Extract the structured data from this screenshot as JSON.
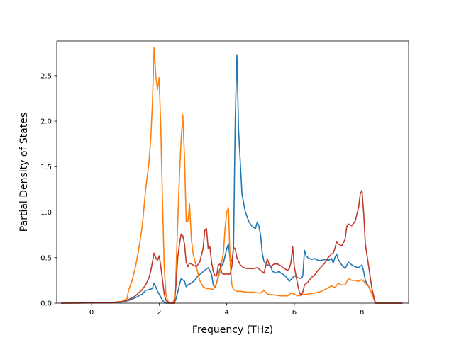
{
  "chart_data": {
    "type": "line",
    "xlabel": "Frequency (THz)",
    "ylabel": "Partial Density of States",
    "xlim": [
      -1.03,
      9.38
    ],
    "ylim": [
      0,
      2.88
    ],
    "x_ticks": [
      0,
      2,
      4,
      6,
      8
    ],
    "y_ticks": [
      0.0,
      0.5,
      1.0,
      1.5,
      2.0,
      2.5
    ],
    "x_tick_labels": [
      "0",
      "2",
      "4",
      "6",
      "8"
    ],
    "y_tick_labels": [
      "0.0",
      "0.5",
      "1.0",
      "1.5",
      "2.0",
      "2.5"
    ],
    "grid": false,
    "legend": "none",
    "series": [
      {
        "color": "#1f77b4",
        "points": [
          [
            -0.9,
            0
          ],
          [
            0.5,
            0.003
          ],
          [
            0.9,
            0.012
          ],
          [
            1.1,
            0.03
          ],
          [
            1.3,
            0.06
          ],
          [
            1.5,
            0.1
          ],
          [
            1.6,
            0.14
          ],
          [
            1.7,
            0.15
          ],
          [
            1.8,
            0.16
          ],
          [
            1.85,
            0.22
          ],
          [
            1.9,
            0.18
          ],
          [
            1.95,
            0.13
          ],
          [
            2.0,
            0.1
          ],
          [
            2.1,
            0.03
          ],
          [
            2.15,
            0.01
          ],
          [
            2.2,
            0.0
          ],
          [
            2.45,
            0.0
          ],
          [
            2.5,
            0.05
          ],
          [
            2.55,
            0.12
          ],
          [
            2.6,
            0.2
          ],
          [
            2.65,
            0.27
          ],
          [
            2.75,
            0.24
          ],
          [
            2.8,
            0.18
          ],
          [
            2.85,
            0.2
          ],
          [
            2.95,
            0.22
          ],
          [
            3.05,
            0.25
          ],
          [
            3.15,
            0.3
          ],
          [
            3.25,
            0.33
          ],
          [
            3.35,
            0.36
          ],
          [
            3.45,
            0.39
          ],
          [
            3.55,
            0.32
          ],
          [
            3.6,
            0.2
          ],
          [
            3.65,
            0.17
          ],
          [
            3.7,
            0.22
          ],
          [
            3.75,
            0.3
          ],
          [
            3.8,
            0.38
          ],
          [
            3.9,
            0.44
          ],
          [
            4.0,
            0.6
          ],
          [
            4.05,
            0.65
          ],
          [
            4.1,
            0.48
          ],
          [
            4.15,
            0.46
          ],
          [
            4.2,
            0.6
          ],
          [
            4.25,
            2.0
          ],
          [
            4.3,
            2.73
          ],
          [
            4.35,
            1.9
          ],
          [
            4.45,
            1.2
          ],
          [
            4.55,
            1.0
          ],
          [
            4.65,
            0.9
          ],
          [
            4.75,
            0.84
          ],
          [
            4.85,
            0.82
          ],
          [
            4.9,
            0.89
          ],
          [
            4.95,
            0.85
          ],
          [
            5.0,
            0.75
          ],
          [
            5.05,
            0.55
          ],
          [
            5.1,
            0.46
          ],
          [
            5.2,
            0.42
          ],
          [
            5.3,
            0.41
          ],
          [
            5.35,
            0.35
          ],
          [
            5.45,
            0.33
          ],
          [
            5.55,
            0.35
          ],
          [
            5.6,
            0.33
          ],
          [
            5.7,
            0.31
          ],
          [
            5.8,
            0.27
          ],
          [
            5.85,
            0.24
          ],
          [
            5.9,
            0.26
          ],
          [
            6.0,
            0.3
          ],
          [
            6.1,
            0.28
          ],
          [
            6.2,
            0.27
          ],
          [
            6.25,
            0.3
          ],
          [
            6.3,
            0.58
          ],
          [
            6.35,
            0.52
          ],
          [
            6.4,
            0.5
          ],
          [
            6.5,
            0.48
          ],
          [
            6.6,
            0.49
          ],
          [
            6.7,
            0.47
          ],
          [
            6.8,
            0.47
          ],
          [
            6.9,
            0.48
          ],
          [
            7.0,
            0.47
          ],
          [
            7.1,
            0.49
          ],
          [
            7.15,
            0.44
          ],
          [
            7.2,
            0.5
          ],
          [
            7.25,
            0.54
          ],
          [
            7.3,
            0.48
          ],
          [
            7.4,
            0.42
          ],
          [
            7.5,
            0.38
          ],
          [
            7.6,
            0.45
          ],
          [
            7.7,
            0.42
          ],
          [
            7.8,
            0.4
          ],
          [
            7.9,
            0.39
          ],
          [
            8.0,
            0.42
          ],
          [
            8.05,
            0.35
          ],
          [
            8.1,
            0.25
          ],
          [
            8.2,
            0.18
          ],
          [
            8.3,
            0.1
          ],
          [
            8.4,
            0.0
          ],
          [
            9.2,
            0.0
          ]
        ]
      },
      {
        "color": "#ff7f0e",
        "points": [
          [
            -0.9,
            0
          ],
          [
            0.5,
            0.005
          ],
          [
            0.9,
            0.02
          ],
          [
            1.05,
            0.05
          ],
          [
            1.1,
            0.15
          ],
          [
            1.2,
            0.25
          ],
          [
            1.3,
            0.4
          ],
          [
            1.4,
            0.6
          ],
          [
            1.5,
            0.85
          ],
          [
            1.6,
            1.25
          ],
          [
            1.7,
            1.55
          ],
          [
            1.75,
            1.8
          ],
          [
            1.8,
            2.2
          ],
          [
            1.85,
            2.81
          ],
          [
            1.9,
            2.5
          ],
          [
            1.95,
            2.35
          ],
          [
            2.0,
            2.48
          ],
          [
            2.05,
            1.9
          ],
          [
            2.1,
            1.1
          ],
          [
            2.15,
            0.4
          ],
          [
            2.2,
            0.1
          ],
          [
            2.25,
            0.03
          ],
          [
            2.3,
            0.0
          ],
          [
            2.4,
            0.0
          ],
          [
            2.45,
            0.05
          ],
          [
            2.5,
            0.35
          ],
          [
            2.55,
            0.9
          ],
          [
            2.6,
            1.4
          ],
          [
            2.65,
            1.8
          ],
          [
            2.7,
            2.07
          ],
          [
            2.75,
            1.6
          ],
          [
            2.8,
            0.9
          ],
          [
            2.85,
            0.9
          ],
          [
            2.9,
            1.09
          ],
          [
            2.95,
            0.72
          ],
          [
            3.0,
            0.55
          ],
          [
            3.1,
            0.4
          ],
          [
            3.2,
            0.25
          ],
          [
            3.3,
            0.18
          ],
          [
            3.4,
            0.16
          ],
          [
            3.5,
            0.16
          ],
          [
            3.6,
            0.15
          ],
          [
            3.7,
            0.22
          ],
          [
            3.8,
            0.35
          ],
          [
            3.9,
            0.55
          ],
          [
            3.95,
            0.82
          ],
          [
            4.0,
            1.0
          ],
          [
            4.05,
            1.05
          ],
          [
            4.1,
            0.45
          ],
          [
            4.15,
            0.2
          ],
          [
            4.2,
            0.15
          ],
          [
            4.3,
            0.13
          ],
          [
            4.4,
            0.13
          ],
          [
            4.6,
            0.12
          ],
          [
            4.8,
            0.12
          ],
          [
            5.0,
            0.11
          ],
          [
            5.1,
            0.14
          ],
          [
            5.2,
            0.1
          ],
          [
            5.4,
            0.09
          ],
          [
            5.6,
            0.08
          ],
          [
            5.8,
            0.08
          ],
          [
            5.9,
            0.11
          ],
          [
            6.0,
            0.1
          ],
          [
            6.1,
            0.08
          ],
          [
            6.2,
            0.09
          ],
          [
            6.4,
            0.1
          ],
          [
            6.6,
            0.11
          ],
          [
            6.8,
            0.13
          ],
          [
            7.0,
            0.17
          ],
          [
            7.1,
            0.19
          ],
          [
            7.2,
            0.17
          ],
          [
            7.3,
            0.22
          ],
          [
            7.4,
            0.2
          ],
          [
            7.5,
            0.2
          ],
          [
            7.6,
            0.27
          ],
          [
            7.7,
            0.25
          ],
          [
            7.8,
            0.25
          ],
          [
            7.9,
            0.24
          ],
          [
            8.0,
            0.26
          ],
          [
            8.1,
            0.22
          ],
          [
            8.2,
            0.18
          ],
          [
            8.3,
            0.1
          ],
          [
            8.4,
            0.0
          ],
          [
            9.2,
            0.0
          ]
        ]
      },
      {
        "color": "#c0392b",
        "points": [
          [
            -0.9,
            0
          ],
          [
            0.5,
            0.004
          ],
          [
            0.9,
            0.015
          ],
          [
            1.1,
            0.04
          ],
          [
            1.3,
            0.08
          ],
          [
            1.5,
            0.15
          ],
          [
            1.6,
            0.2
          ],
          [
            1.7,
            0.28
          ],
          [
            1.75,
            0.35
          ],
          [
            1.8,
            0.45
          ],
          [
            1.85,
            0.55
          ],
          [
            1.9,
            0.5
          ],
          [
            1.95,
            0.47
          ],
          [
            2.0,
            0.52
          ],
          [
            2.05,
            0.4
          ],
          [
            2.1,
            0.25
          ],
          [
            2.15,
            0.1
          ],
          [
            2.2,
            0.03
          ],
          [
            2.3,
            0.0
          ],
          [
            2.45,
            0.0
          ],
          [
            2.5,
            0.2
          ],
          [
            2.55,
            0.5
          ],
          [
            2.6,
            0.65
          ],
          [
            2.65,
            0.76
          ],
          [
            2.7,
            0.74
          ],
          [
            2.75,
            0.65
          ],
          [
            2.8,
            0.45
          ],
          [
            2.85,
            0.4
          ],
          [
            2.9,
            0.44
          ],
          [
            3.0,
            0.42
          ],
          [
            3.1,
            0.4
          ],
          [
            3.2,
            0.45
          ],
          [
            3.3,
            0.6
          ],
          [
            3.35,
            0.8
          ],
          [
            3.4,
            0.82
          ],
          [
            3.45,
            0.6
          ],
          [
            3.5,
            0.62
          ],
          [
            3.55,
            0.45
          ],
          [
            3.6,
            0.35
          ],
          [
            3.65,
            0.3
          ],
          [
            3.7,
            0.3
          ],
          [
            3.75,
            0.42
          ],
          [
            3.8,
            0.43
          ],
          [
            3.85,
            0.33
          ],
          [
            3.9,
            0.32
          ],
          [
            4.0,
            0.32
          ],
          [
            4.1,
            0.32
          ],
          [
            4.15,
            0.4
          ],
          [
            4.2,
            0.61
          ],
          [
            4.25,
            0.6
          ],
          [
            4.3,
            0.5
          ],
          [
            4.4,
            0.42
          ],
          [
            4.5,
            0.39
          ],
          [
            4.6,
            0.38
          ],
          [
            4.8,
            0.38
          ],
          [
            4.9,
            0.39
          ],
          [
            5.0,
            0.36
          ],
          [
            5.1,
            0.33
          ],
          [
            5.15,
            0.4
          ],
          [
            5.2,
            0.49
          ],
          [
            5.25,
            0.43
          ],
          [
            5.3,
            0.4
          ],
          [
            5.4,
            0.43
          ],
          [
            5.5,
            0.43
          ],
          [
            5.6,
            0.41
          ],
          [
            5.7,
            0.38
          ],
          [
            5.8,
            0.36
          ],
          [
            5.85,
            0.38
          ],
          [
            5.9,
            0.45
          ],
          [
            5.95,
            0.62
          ],
          [
            6.0,
            0.4
          ],
          [
            6.05,
            0.3
          ],
          [
            6.1,
            0.2
          ],
          [
            6.15,
            0.12
          ],
          [
            6.2,
            0.08
          ],
          [
            6.25,
            0.12
          ],
          [
            6.3,
            0.2
          ],
          [
            6.4,
            0.23
          ],
          [
            6.5,
            0.28
          ],
          [
            6.6,
            0.31
          ],
          [
            6.7,
            0.36
          ],
          [
            6.8,
            0.4
          ],
          [
            6.9,
            0.44
          ],
          [
            7.0,
            0.5
          ],
          [
            7.1,
            0.54
          ],
          [
            7.15,
            0.55
          ],
          [
            7.2,
            0.6
          ],
          [
            7.25,
            0.68
          ],
          [
            7.3,
            0.65
          ],
          [
            7.4,
            0.63
          ],
          [
            7.5,
            0.7
          ],
          [
            7.55,
            0.84
          ],
          [
            7.6,
            0.87
          ],
          [
            7.7,
            0.85
          ],
          [
            7.8,
            0.9
          ],
          [
            7.9,
            1.05
          ],
          [
            7.95,
            1.2
          ],
          [
            8.0,
            1.24
          ],
          [
            8.05,
            1.0
          ],
          [
            8.1,
            0.65
          ],
          [
            8.2,
            0.4
          ],
          [
            8.3,
            0.15
          ],
          [
            8.4,
            0.0
          ],
          [
            9.2,
            0.0
          ]
        ]
      }
    ]
  }
}
